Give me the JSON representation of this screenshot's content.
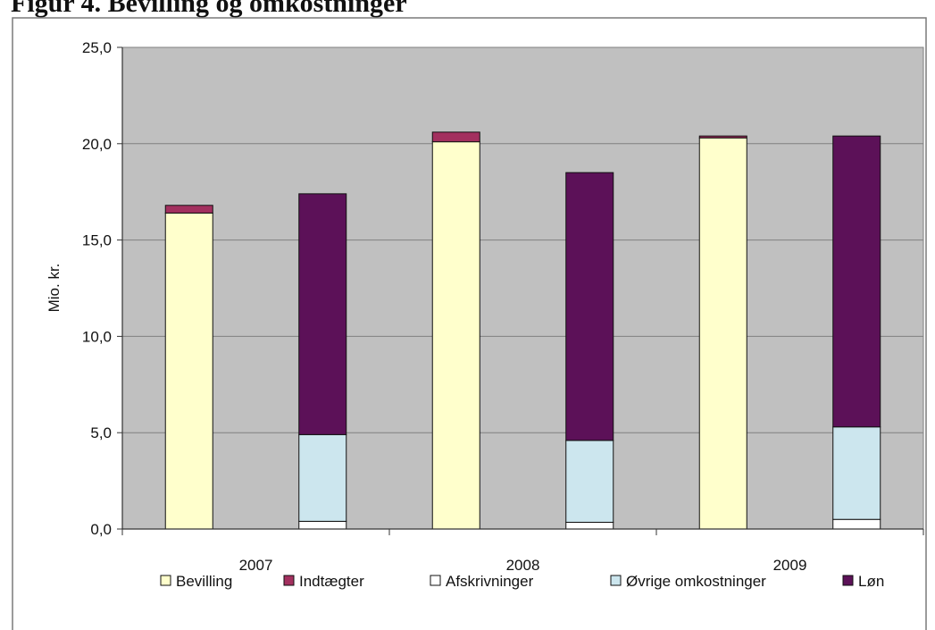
{
  "figure_caption": "Figur 4. Bevilling og omkostninger",
  "chart_data": {
    "type": "bar",
    "stacked": true,
    "groups": [
      "2007",
      "2008",
      "2009"
    ],
    "ylabel": "Mio. kr.",
    "xlabel": "",
    "title": "",
    "ylim": [
      0,
      25
    ],
    "yticks": [
      "0,0",
      "5,0",
      "10,0",
      "15,0",
      "20,0",
      "25,0"
    ],
    "grid": true,
    "legend_position": "bottom",
    "colors": {
      "Bevilling": "#ffffcc",
      "Indtægter": "#a3305f",
      "Afskrivninger": "#ffffff",
      "Øvrige omkostninger": "#cce6ee",
      "Løn": "#5c1158"
    },
    "legend": [
      "Bevilling",
      "Indtægter",
      "Afskrivninger",
      "Øvrige omkostninger",
      "Løn"
    ],
    "bars": [
      {
        "group": "2007",
        "slot": "left",
        "segments": [
          {
            "series": "Bevilling",
            "value": 16.4
          },
          {
            "series": "Indtægter",
            "value": 0.4
          }
        ]
      },
      {
        "group": "2007",
        "slot": "right",
        "segments": [
          {
            "series": "Afskrivninger",
            "value": 0.4
          },
          {
            "series": "Øvrige omkostninger",
            "value": 4.5
          },
          {
            "series": "Løn",
            "value": 12.5
          }
        ]
      },
      {
        "group": "2008",
        "slot": "left",
        "segments": [
          {
            "series": "Bevilling",
            "value": 20.1
          },
          {
            "series": "Indtægter",
            "value": 0.5
          }
        ]
      },
      {
        "group": "2008",
        "slot": "right",
        "segments": [
          {
            "series": "Afskrivninger",
            "value": 0.35
          },
          {
            "series": "Øvrige omkostninger",
            "value": 4.25
          },
          {
            "series": "Løn",
            "value": 13.9
          }
        ]
      },
      {
        "group": "2009",
        "slot": "left",
        "segments": [
          {
            "series": "Bevilling",
            "value": 20.3
          },
          {
            "series": "Indtægter",
            "value": 0.1
          }
        ]
      },
      {
        "group": "2009",
        "slot": "right",
        "segments": [
          {
            "series": "Afskrivninger",
            "value": 0.5
          },
          {
            "series": "Øvrige omkostninger",
            "value": 4.8
          },
          {
            "series": "Løn",
            "value": 15.1
          }
        ]
      }
    ]
  }
}
